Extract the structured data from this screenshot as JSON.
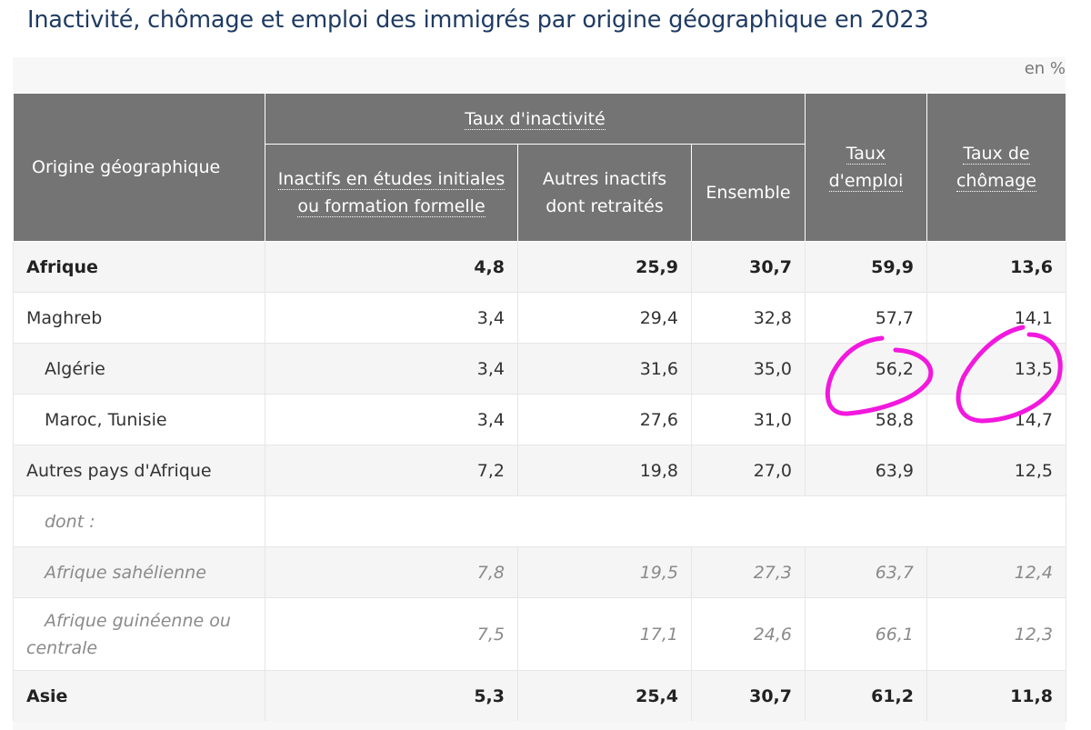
{
  "title": "Inactivité, chômage et emploi des immigrés par origine géographique en 2023",
  "unit": "en %",
  "header": {
    "origin": "Origine géographique",
    "inactivity_group": "Taux d'inactivité",
    "students": "Inactifs en études initiales ou formation formelle",
    "others": "Autres inactifs dont retraités",
    "total": "Ensemble",
    "employment_rate": "Taux d'emploi",
    "unemployment_rate": "Taux de chômage"
  },
  "rows": [
    {
      "label": "Afrique",
      "v1": "4,8",
      "v2": "25,9",
      "v3": "30,7",
      "v4": "59,9",
      "v5": "13,6"
    },
    {
      "label": "Maghreb",
      "v1": "3,4",
      "v2": "29,4",
      "v3": "32,8",
      "v4": "57,7",
      "v5": "14,1"
    },
    {
      "label": "Algérie",
      "v1": "3,4",
      "v2": "31,6",
      "v3": "35,0",
      "v4": "56,2",
      "v5": "13,5"
    },
    {
      "label": "Maroc, Tunisie",
      "v1": "3,4",
      "v2": "27,6",
      "v3": "31,0",
      "v4": "58,8",
      "v5": "14,7"
    },
    {
      "label": "Autres pays d'Afrique",
      "v1": "7,2",
      "v2": "19,8",
      "v3": "27,0",
      "v4": "63,9",
      "v5": "12,5"
    },
    {
      "label": "dont :"
    },
    {
      "label": "Afrique sahélienne",
      "v1": "7,8",
      "v2": "19,5",
      "v3": "27,3",
      "v4": "63,7",
      "v5": "12,4"
    },
    {
      "label": "Afrique guinéenne ou centrale",
      "v1": "7,5",
      "v2": "17,1",
      "v3": "24,6",
      "v4": "66,1",
      "v5": "12,3"
    },
    {
      "label": "Asie",
      "v1": "5,3",
      "v2": "25,4",
      "v3": "30,7",
      "v4": "61,2",
      "v5": "11,8"
    }
  ],
  "annotation_color": "#f218de"
}
